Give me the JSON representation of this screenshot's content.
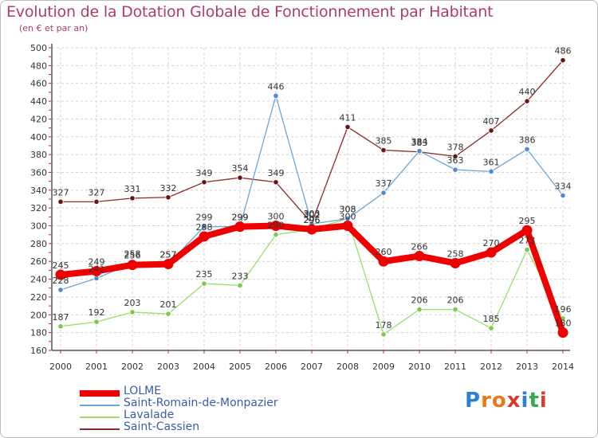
{
  "title": "Evolution de la Dotation Globale de Fonctionnement par Habitant",
  "subtitle": "(en € et par an)",
  "logo_text": "Proxiti",
  "colors": {
    "LOLME": "#ee0000",
    "Saint-Romain-de-Monpazier": "#5b9bd5",
    "Lavalade": "#90d860",
    "Saint-Cassien": "#7b1c1c",
    "title": "#b03a6e",
    "grid": "#d0d0d0"
  },
  "chart_data": {
    "type": "line",
    "title": "Evolution de la Dotation Globale de Fonctionnement par Habitant",
    "subtitle": "(en € et par an)",
    "xlabel": "",
    "ylabel": "",
    "ylim": [
      160,
      500
    ],
    "yticks": [
      160,
      180,
      200,
      220,
      240,
      260,
      280,
      300,
      320,
      340,
      360,
      380,
      400,
      420,
      440,
      460,
      480,
      500
    ],
    "grid": true,
    "legend_position": "bottom-left",
    "x": [
      "2000",
      "2001",
      "2002",
      "2003",
      "2004",
      "2005",
      "2006",
      "2007",
      "2008",
      "2009",
      "2010",
      "2011",
      "2012",
      "2013",
      "2014"
    ],
    "series": [
      {
        "name": "LOLME",
        "values": [
          245,
          249,
          256,
          257,
          288,
          299,
          300,
          296,
          300,
          260,
          266,
          258,
          270,
          295,
          180
        ]
      },
      {
        "name": "Saint-Romain-de-Monpazier",
        "values": [
          228,
          241,
          258,
          257,
          299,
          299,
          446,
          302,
          308,
          337,
          384,
          363,
          361,
          386,
          334
        ]
      },
      {
        "name": "Lavalade",
        "values": [
          187,
          192,
          203,
          201,
          235,
          233,
          290,
          296,
          308,
          178,
          206,
          206,
          185,
          273,
          196
        ]
      },
      {
        "name": "Saint-Cassien",
        "values": [
          327,
          327,
          331,
          332,
          349,
          354,
          349,
          303,
          411,
          385,
          383,
          378,
          407,
          440,
          486
        ]
      }
    ],
    "labels": [
      {
        "series": "LOLME",
        "text": [
          "245",
          "249",
          "256",
          "257",
          "288",
          "299",
          "300",
          "296",
          "300",
          "260",
          "266",
          "258",
          "270",
          "295",
          "180"
        ]
      },
      {
        "series": "Saint-Romain-de-Monpazier",
        "text": [
          "228",
          "241",
          "258",
          "257",
          "299",
          "299",
          "446",
          "302",
          "308",
          "337",
          "384",
          "363",
          "361",
          "386",
          "334"
        ]
      },
      {
        "series": "Lavalade",
        "text": [
          "187",
          "192",
          "203",
          "201",
          "235",
          "233",
          "290",
          "296",
          "308",
          "178",
          "206",
          "206",
          "185",
          "273",
          "196"
        ]
      },
      {
        "series": "Saint-Cassien",
        "text": [
          "327",
          "327",
          "331",
          "332",
          "349",
          "354",
          "349",
          "303",
          "411",
          "385",
          "383",
          "378",
          "407",
          "440",
          "486"
        ]
      }
    ]
  }
}
